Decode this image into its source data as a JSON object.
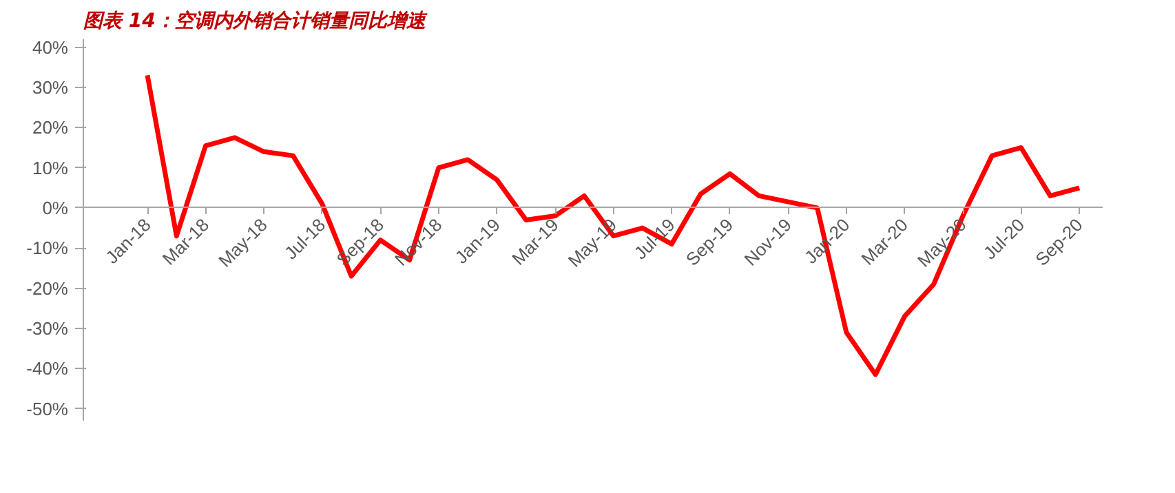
{
  "chart_data": {
    "type": "line",
    "title": "图表 14：空调内外销合计销量同比增速",
    "categories": [
      "Jan-18",
      null,
      "Mar-18",
      null,
      "May-18",
      null,
      "Jul-18",
      null,
      "Sep-18",
      null,
      "Nov-18",
      null,
      "Jan-19",
      null,
      "Mar-19",
      null,
      "May-19",
      null,
      "Jul-19",
      null,
      "Sep-19",
      null,
      "Nov-19",
      null,
      "Jan-20",
      null,
      "Mar-20",
      null,
      "May-20",
      null,
      "Jul-20",
      null,
      "Sep-20"
    ],
    "series": [
      {
        "color": "#ff0000",
        "values": [
          33,
          -7,
          15.5,
          17.5,
          14,
          13,
          1,
          -17,
          -8,
          -13,
          10,
          12,
          7,
          -3,
          -2,
          3,
          -7,
          -5,
          -9,
          3.5,
          8.5,
          3,
          1.5,
          0,
          -31,
          -41.5,
          -27,
          -19,
          -2,
          13,
          15,
          3,
          5
        ]
      }
    ],
    "ylim": [
      -53,
      42
    ],
    "yticks": [
      {
        "value": -50,
        "label": "-50%"
      },
      {
        "value": -40,
        "label": "-40%"
      },
      {
        "value": -30,
        "label": "-30%"
      },
      {
        "value": -20,
        "label": "-20%"
      },
      {
        "value": -10,
        "label": "-10%"
      },
      {
        "value": 0,
        "label": "0%"
      },
      {
        "value": 10,
        "label": "10%"
      },
      {
        "value": 20,
        "label": "20%"
      },
      {
        "value": 30,
        "label": "30%"
      },
      {
        "value": 40,
        "label": "40%"
      }
    ],
    "grid": false,
    "marker": "none",
    "line_style": "solid"
  }
}
